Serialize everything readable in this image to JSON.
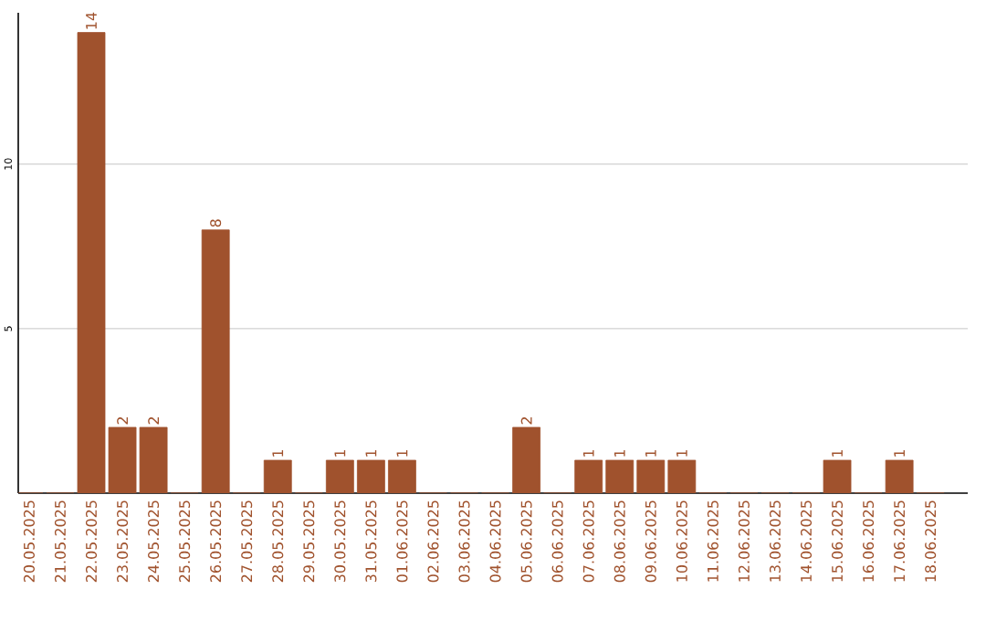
{
  "chart_data": {
    "type": "bar",
    "categories": [
      "20.05.2025",
      "21.05.2025",
      "22.05.2025",
      "23.05.2025",
      "24.05.2025",
      "25.05.2025",
      "26.05.2025",
      "27.05.2025",
      "28.05.2025",
      "29.05.2025",
      "30.05.2025",
      "31.05.2025",
      "01.06.2025",
      "02.06.2025",
      "03.06.2025",
      "04.06.2025",
      "05.06.2025",
      "06.06.2025",
      "07.06.2025",
      "08.06.2025",
      "09.06.2025",
      "10.06.2025",
      "11.06.2025",
      "12.06.2025",
      "13.06.2025",
      "14.06.2025",
      "15.06.2025",
      "16.06.2025",
      "17.06.2025",
      "18.06.2025"
    ],
    "values": [
      0,
      0,
      14,
      2,
      2,
      0,
      8,
      0,
      1,
      0,
      1,
      1,
      1,
      0,
      0,
      0,
      2,
      0,
      1,
      1,
      1,
      1,
      0,
      0,
      0,
      0,
      1,
      0,
      1,
      0
    ],
    "value_labels": [
      null,
      null,
      "14",
      "2",
      "2",
      null,
      "8",
      null,
      "1",
      null,
      "1",
      "1",
      "1",
      null,
      null,
      null,
      "2",
      null,
      "1",
      "1",
      "1",
      "1",
      null,
      null,
      null,
      null,
      "1",
      null,
      "1",
      null
    ],
    "color": "#a0522d",
    "ylim": [
      0,
      14.6
    ],
    "yticks": [
      5,
      10
    ],
    "grid": "y"
  }
}
